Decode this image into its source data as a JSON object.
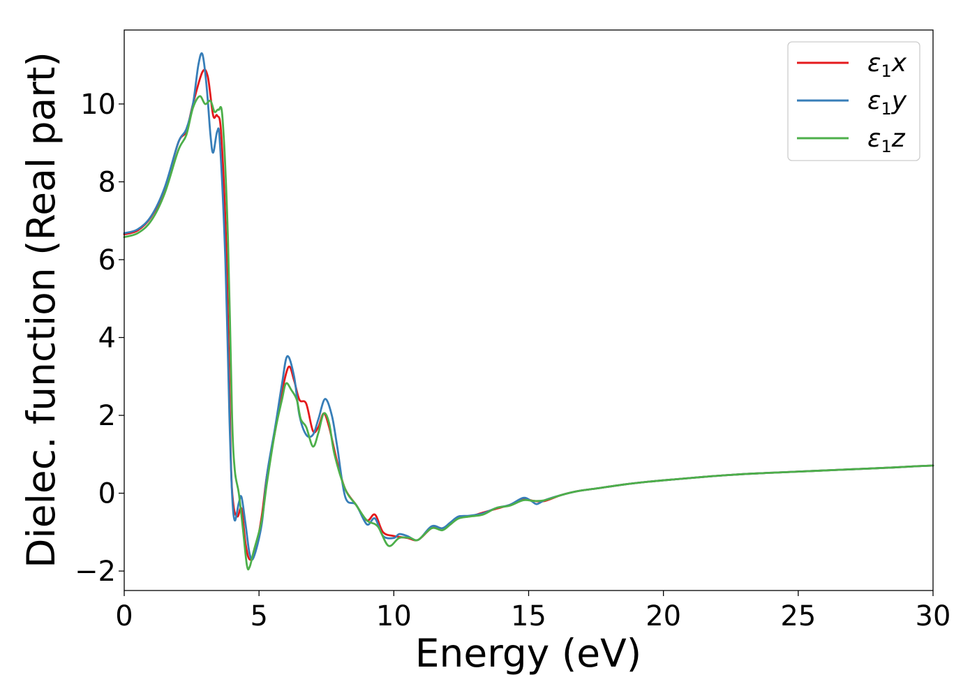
{
  "chart_data": {
    "type": "line",
    "title": "",
    "xlabel": "Energy (eV)",
    "ylabel": "Dielec. function (Real part)",
    "xlim": [
      0,
      30
    ],
    "ylim": [
      -2.5,
      11.9
    ],
    "xticks": [
      0,
      5,
      10,
      15,
      20,
      25,
      30
    ],
    "xtick_labels": [
      "0",
      "5",
      "10",
      "15",
      "20",
      "25",
      "30"
    ],
    "yticks": [
      -2,
      0,
      2,
      4,
      6,
      8,
      10
    ],
    "ytick_labels": [
      "−2",
      "0",
      "2",
      "4",
      "6",
      "8",
      "10"
    ],
    "grid": false,
    "legend_position": "top-right",
    "series": [
      {
        "name": "ε₁x",
        "legend_base": "ε",
        "legend_sub": "1",
        "legend_var": "x",
        "color": "#e41a1c",
        "points": [
          [
            0,
            6.65
          ],
          [
            0.5,
            6.75
          ],
          [
            1.0,
            7.1
          ],
          [
            1.5,
            7.8
          ],
          [
            2.0,
            9.0
          ],
          [
            2.3,
            9.3
          ],
          [
            2.55,
            10.0
          ],
          [
            2.9,
            10.82
          ],
          [
            3.1,
            10.7
          ],
          [
            3.3,
            9.7
          ],
          [
            3.45,
            9.7
          ],
          [
            3.6,
            9.2
          ],
          [
            3.8,
            6.0
          ],
          [
            3.95,
            1.0
          ],
          [
            4.05,
            -0.3
          ],
          [
            4.2,
            -0.6
          ],
          [
            4.35,
            -0.4
          ],
          [
            4.5,
            -1.3
          ],
          [
            4.65,
            -1.7
          ],
          [
            4.85,
            -1.5
          ],
          [
            5.1,
            -0.6
          ],
          [
            5.3,
            0.5
          ],
          [
            5.6,
            1.6
          ],
          [
            5.85,
            2.6
          ],
          [
            6.1,
            3.25
          ],
          [
            6.3,
            2.9
          ],
          [
            6.5,
            2.4
          ],
          [
            6.75,
            2.3
          ],
          [
            7.0,
            1.6
          ],
          [
            7.2,
            1.7
          ],
          [
            7.4,
            2.05
          ],
          [
            7.6,
            1.7
          ],
          [
            7.9,
            0.8
          ],
          [
            8.2,
            0.1
          ],
          [
            8.6,
            -0.3
          ],
          [
            9.0,
            -0.7
          ],
          [
            9.3,
            -0.55
          ],
          [
            9.6,
            -1.0
          ],
          [
            10.0,
            -1.1
          ],
          [
            10.5,
            -1.15
          ],
          [
            10.9,
            -1.2
          ],
          [
            11.4,
            -0.9
          ],
          [
            11.8,
            -0.9
          ],
          [
            12.1,
            -0.8
          ],
          [
            12.4,
            -0.6
          ],
          [
            12.8,
            -0.6
          ],
          [
            13.3,
            -0.5
          ],
          [
            13.8,
            -0.4
          ],
          [
            14.3,
            -0.3
          ],
          [
            14.8,
            -0.15
          ],
          [
            15.2,
            -0.2
          ],
          [
            15.6,
            -0.2
          ],
          [
            16.2,
            -0.05
          ],
          [
            16.8,
            0.05
          ],
          [
            17.5,
            0.12
          ],
          [
            18.5,
            0.22
          ],
          [
            19.5,
            0.3
          ],
          [
            20.5,
            0.36
          ],
          [
            21.5,
            0.42
          ],
          [
            22.5,
            0.47
          ],
          [
            23.5,
            0.51
          ],
          [
            24.5,
            0.54
          ],
          [
            25.5,
            0.57
          ],
          [
            26.5,
            0.6
          ],
          [
            27.5,
            0.63
          ],
          [
            28.5,
            0.66
          ],
          [
            29.3,
            0.69
          ],
          [
            30,
            0.71
          ]
        ]
      },
      {
        "name": "ε₁y",
        "legend_base": "ε",
        "legend_sub": "1",
        "legend_var": "y",
        "color": "#377eb8",
        "points": [
          [
            0,
            6.68
          ],
          [
            0.5,
            6.78
          ],
          [
            1.0,
            7.12
          ],
          [
            1.5,
            7.85
          ],
          [
            2.0,
            9.0
          ],
          [
            2.3,
            9.35
          ],
          [
            2.55,
            10.0
          ],
          [
            2.75,
            11.0
          ],
          [
            2.9,
            11.28
          ],
          [
            3.05,
            10.5
          ],
          [
            3.2,
            9.2
          ],
          [
            3.3,
            8.75
          ],
          [
            3.45,
            9.3
          ],
          [
            3.55,
            9.0
          ],
          [
            3.75,
            6.0
          ],
          [
            3.9,
            2.0
          ],
          [
            4.0,
            0.0
          ],
          [
            4.1,
            -0.7
          ],
          [
            4.25,
            -0.25
          ],
          [
            4.35,
            -0.1
          ],
          [
            4.5,
            -0.8
          ],
          [
            4.65,
            -1.55
          ],
          [
            4.8,
            -1.65
          ],
          [
            5.1,
            -0.8
          ],
          [
            5.3,
            0.5
          ],
          [
            5.6,
            1.7
          ],
          [
            5.85,
            2.8
          ],
          [
            6.05,
            3.52
          ],
          [
            6.3,
            3.0
          ],
          [
            6.5,
            2.0
          ],
          [
            6.75,
            1.5
          ],
          [
            7.0,
            1.5
          ],
          [
            7.2,
            1.9
          ],
          [
            7.45,
            2.42
          ],
          [
            7.7,
            2.0
          ],
          [
            7.9,
            1.2
          ],
          [
            8.2,
            -0.1
          ],
          [
            8.6,
            -0.3
          ],
          [
            9.0,
            -0.8
          ],
          [
            9.3,
            -0.65
          ],
          [
            9.6,
            -1.1
          ],
          [
            10.0,
            -1.15
          ],
          [
            10.2,
            -1.05
          ],
          [
            10.5,
            -1.1
          ],
          [
            10.9,
            -1.2
          ],
          [
            11.4,
            -0.85
          ],
          [
            11.8,
            -0.9
          ],
          [
            12.1,
            -0.75
          ],
          [
            12.4,
            -0.6
          ],
          [
            12.8,
            -0.58
          ],
          [
            13.3,
            -0.52
          ],
          [
            13.8,
            -0.38
          ],
          [
            14.3,
            -0.3
          ],
          [
            14.8,
            -0.12
          ],
          [
            15.1,
            -0.2
          ],
          [
            15.3,
            -0.28
          ],
          [
            15.6,
            -0.18
          ],
          [
            16.2,
            -0.05
          ],
          [
            16.8,
            0.05
          ],
          [
            17.5,
            0.12
          ],
          [
            18.5,
            0.22
          ],
          [
            19.5,
            0.3
          ],
          [
            20.5,
            0.36
          ],
          [
            21.5,
            0.42
          ],
          [
            22.5,
            0.47
          ],
          [
            23.5,
            0.51
          ],
          [
            24.5,
            0.54
          ],
          [
            25.5,
            0.57
          ],
          [
            26.5,
            0.6
          ],
          [
            27.5,
            0.63
          ],
          [
            28.5,
            0.66
          ],
          [
            29.3,
            0.69
          ],
          [
            30,
            0.71
          ]
        ]
      },
      {
        "name": "ε₁z",
        "legend_base": "ε",
        "legend_sub": "1",
        "legend_var": "z",
        "color": "#4daf4a",
        "points": [
          [
            0,
            6.58
          ],
          [
            0.5,
            6.68
          ],
          [
            1.0,
            7.0
          ],
          [
            1.5,
            7.7
          ],
          [
            2.0,
            8.8
          ],
          [
            2.3,
            9.2
          ],
          [
            2.55,
            9.9
          ],
          [
            2.8,
            10.2
          ],
          [
            3.0,
            10.0
          ],
          [
            3.2,
            10.08
          ],
          [
            3.35,
            9.8
          ],
          [
            3.5,
            9.85
          ],
          [
            3.65,
            9.6
          ],
          [
            3.85,
            6.5
          ],
          [
            4.0,
            2.0
          ],
          [
            4.1,
            0.6
          ],
          [
            4.25,
            0.0
          ],
          [
            4.4,
            -0.9
          ],
          [
            4.55,
            -1.85
          ],
          [
            4.65,
            -1.9
          ],
          [
            4.8,
            -1.5
          ],
          [
            5.1,
            -0.7
          ],
          [
            5.3,
            0.3
          ],
          [
            5.6,
            1.6
          ],
          [
            5.85,
            2.4
          ],
          [
            6.0,
            2.82
          ],
          [
            6.2,
            2.65
          ],
          [
            6.4,
            2.4
          ],
          [
            6.55,
            1.9
          ],
          [
            6.75,
            1.7
          ],
          [
            7.0,
            1.2
          ],
          [
            7.2,
            1.55
          ],
          [
            7.4,
            2.05
          ],
          [
            7.6,
            1.8
          ],
          [
            7.8,
            1.0
          ],
          [
            8.2,
            0.1
          ],
          [
            8.6,
            -0.3
          ],
          [
            9.0,
            -0.7
          ],
          [
            9.4,
            -0.85
          ],
          [
            9.8,
            -1.35
          ],
          [
            10.2,
            -1.15
          ],
          [
            10.6,
            -1.15
          ],
          [
            10.9,
            -1.2
          ],
          [
            11.4,
            -0.9
          ],
          [
            11.8,
            -0.95
          ],
          [
            12.1,
            -0.8
          ],
          [
            12.4,
            -0.65
          ],
          [
            12.8,
            -0.6
          ],
          [
            13.3,
            -0.55
          ],
          [
            13.8,
            -0.38
          ],
          [
            14.3,
            -0.32
          ],
          [
            14.8,
            -0.18
          ],
          [
            15.2,
            -0.2
          ],
          [
            15.6,
            -0.18
          ],
          [
            16.2,
            -0.05
          ],
          [
            16.8,
            0.05
          ],
          [
            17.5,
            0.12
          ],
          [
            18.5,
            0.22
          ],
          [
            19.5,
            0.3
          ],
          [
            20.5,
            0.36
          ],
          [
            21.5,
            0.42
          ],
          [
            22.5,
            0.47
          ],
          [
            23.5,
            0.51
          ],
          [
            24.5,
            0.54
          ],
          [
            25.5,
            0.57
          ],
          [
            26.5,
            0.6
          ],
          [
            27.5,
            0.63
          ],
          [
            28.5,
            0.66
          ],
          [
            29.3,
            0.69
          ],
          [
            30,
            0.71
          ]
        ]
      }
    ]
  }
}
